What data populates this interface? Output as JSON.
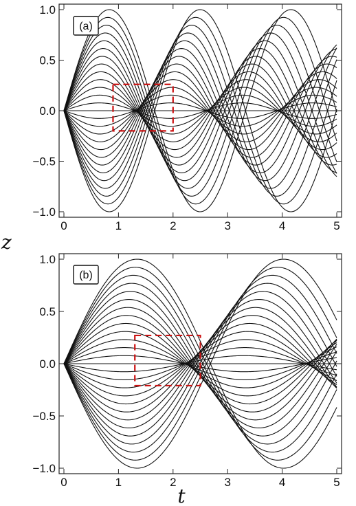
{
  "chart_data": [
    {
      "type": "line",
      "panel_label": "(a)",
      "xlabel": "t",
      "ylabel": "z",
      "xlim": [
        0,
        5
      ],
      "ylim": [
        -1.0,
        1.0
      ],
      "xticks": [
        "0",
        "1",
        "2",
        "3",
        "4",
        "5"
      ],
      "yticks": [
        "1.0",
        "0.5",
        "0.0",
        "-0.5",
        "-1.0"
      ],
      "series_description": "family of 27 trajectories z_k(t) = A_k sin(phi_k(t)), A_k in [-1,1], all starting at z=0",
      "amplitudes": [
        -1.0,
        -0.923,
        -0.846,
        -0.769,
        -0.692,
        -0.615,
        -0.538,
        -0.462,
        -0.385,
        -0.308,
        -0.231,
        -0.154,
        -0.077,
        0.0,
        0.077,
        0.154,
        0.231,
        0.308,
        0.385,
        0.462,
        0.538,
        0.615,
        0.692,
        0.769,
        0.846,
        0.923,
        1.0
      ],
      "crossing_points_t": [
        1.3,
        2.6,
        3.9
      ],
      "highlight_box": {
        "t_range": [
          0.9,
          2.0
        ],
        "z_range": [
          -0.2,
          0.26
        ],
        "color": "#cc1111"
      },
      "line_color": "#111111",
      "grid": false
    },
    {
      "type": "line",
      "panel_label": "(b)",
      "xlabel": "t",
      "ylabel": "z",
      "xlim": [
        0,
        5
      ],
      "ylim": [
        -1.0,
        1.0
      ],
      "xticks": [
        "0",
        "1",
        "2",
        "3",
        "4",
        "5"
      ],
      "yticks": [
        "1.0",
        "0.5",
        "0.0",
        "-0.5",
        "-1.0"
      ],
      "series_description": "family of 27 trajectories with lengthening period, all starting at z=0",
      "amplitudes": [
        -1.0,
        -0.923,
        -0.846,
        -0.769,
        -0.692,
        -0.615,
        -0.538,
        -0.462,
        -0.385,
        -0.308,
        -0.231,
        -0.154,
        -0.077,
        0.0,
        0.077,
        0.154,
        0.231,
        0.308,
        0.385,
        0.462,
        0.538,
        0.615,
        0.692,
        0.769,
        0.846,
        0.923,
        1.0
      ],
      "crossing_points_t": [
        2.2,
        4.4
      ],
      "highlight_box": {
        "t_range": [
          1.3,
          2.5
        ],
        "z_range": [
          -0.21,
          0.27
        ],
        "color": "#cc1111"
      },
      "line_color": "#111111",
      "grid": false
    }
  ]
}
